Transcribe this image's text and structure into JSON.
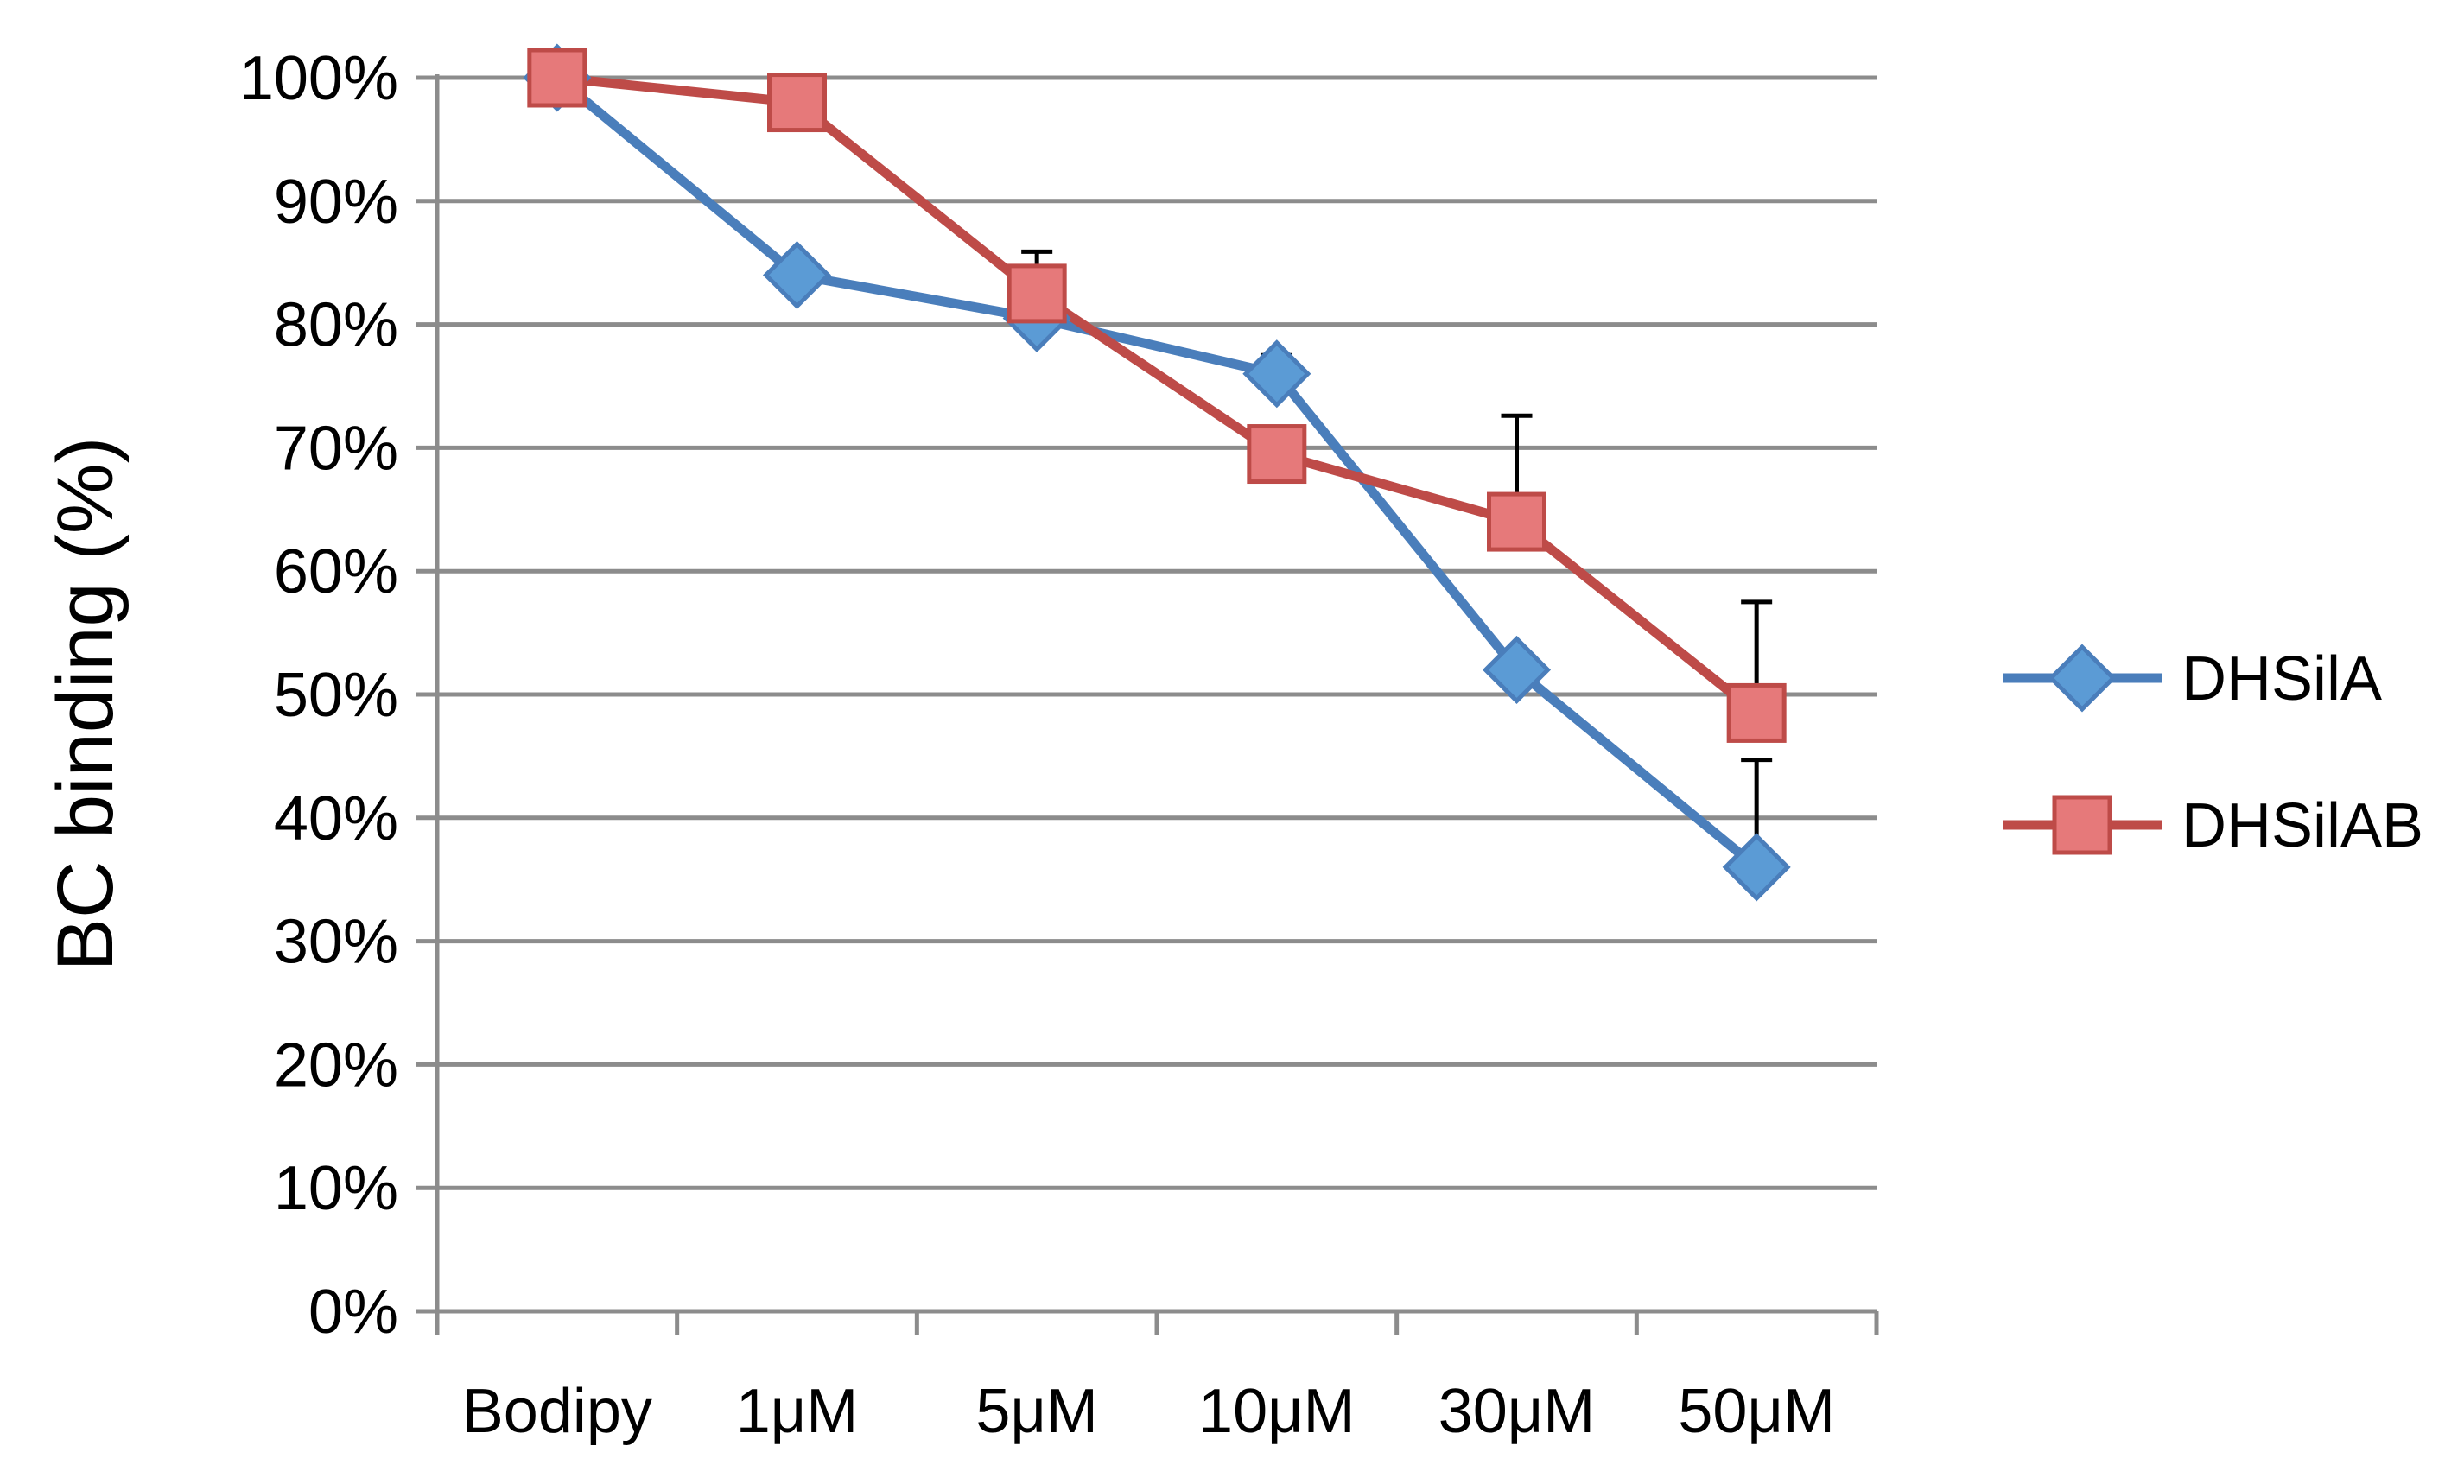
{
  "chart_data": {
    "type": "line",
    "title": "",
    "xlabel": "",
    "ylabel": "BC binding (%)",
    "categories": [
      "Bodipy",
      "1μM",
      "5μM",
      "10μM",
      "30μM",
      "50μM"
    ],
    "ylim": [
      0,
      100
    ],
    "yticks": [
      0,
      10,
      20,
      30,
      40,
      50,
      60,
      70,
      80,
      90,
      100
    ],
    "ytick_labels": [
      "0%",
      "10%",
      "20%",
      "30%",
      "40%",
      "50%",
      "60%",
      "70%",
      "80%",
      "90%",
      "100%"
    ],
    "grid": true,
    "legend_position": "right",
    "series": [
      {
        "name": "DHSilA",
        "color": "#4a7ebb",
        "marker_fill": "#5b9bd5",
        "marker": "diamond",
        "values": [
          100,
          84,
          80.5,
          76,
          52,
          36
        ],
        "error_plus": [
          0,
          0,
          0,
          1.5,
          0,
          8.7
        ]
      },
      {
        "name": "DHSilAB",
        "color": "#be4b48",
        "marker_fill": "#e6797a",
        "marker": "square",
        "values": [
          100,
          98,
          82.5,
          69.5,
          64,
          48.5
        ],
        "error_plus": [
          0,
          0,
          3.4,
          0,
          8.6,
          9
        ]
      }
    ]
  }
}
